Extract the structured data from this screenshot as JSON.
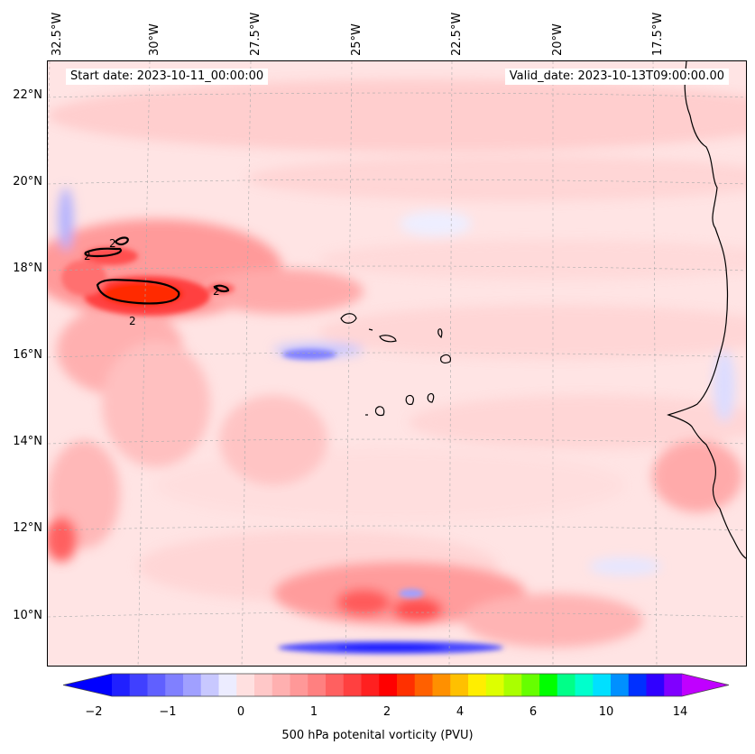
{
  "map": {
    "start_date": "Start date: 2023-10-11_00:00:00",
    "valid_date": "Valid_date: 2023-10-13T09:00:00.00",
    "lon_labels": [
      "32.5°W",
      "30°W",
      "27.5°W",
      "25°W",
      "22.5°W",
      "20°W",
      "17.5°W"
    ],
    "lat_labels": [
      "22°N",
      "20°N",
      "18°N",
      "16°N",
      "14°N",
      "12°N",
      "10°N"
    ],
    "contour_labels": [
      "2",
      "2",
      "2",
      "2"
    ]
  },
  "colorbar": {
    "label": "500 hPa potenital vorticity (PVU)",
    "ticks": [
      "−2",
      "−1",
      "0",
      "1",
      "2",
      "4",
      "6",
      "10",
      "14"
    ],
    "colors": [
      "#0000ff",
      "#2020ff",
      "#4040ff",
      "#6060ff",
      "#8080ff",
      "#a0a0ff",
      "#c8c8ff",
      "#ececff",
      "#ffe0e0",
      "#ffc8c8",
      "#ffb0b0",
      "#ff9898",
      "#ff8080",
      "#ff6060",
      "#ff4040",
      "#ff2020",
      "#ff0000",
      "#ff3000",
      "#ff6000",
      "#ff9000",
      "#ffc000",
      "#ffee00",
      "#ddff00",
      "#aaff00",
      "#66ff00",
      "#00ff00",
      "#00ff88",
      "#00ffcc",
      "#00e0ff",
      "#0090ff",
      "#0030ff",
      "#3000ff",
      "#8000ff",
      "#c000ff"
    ]
  }
}
